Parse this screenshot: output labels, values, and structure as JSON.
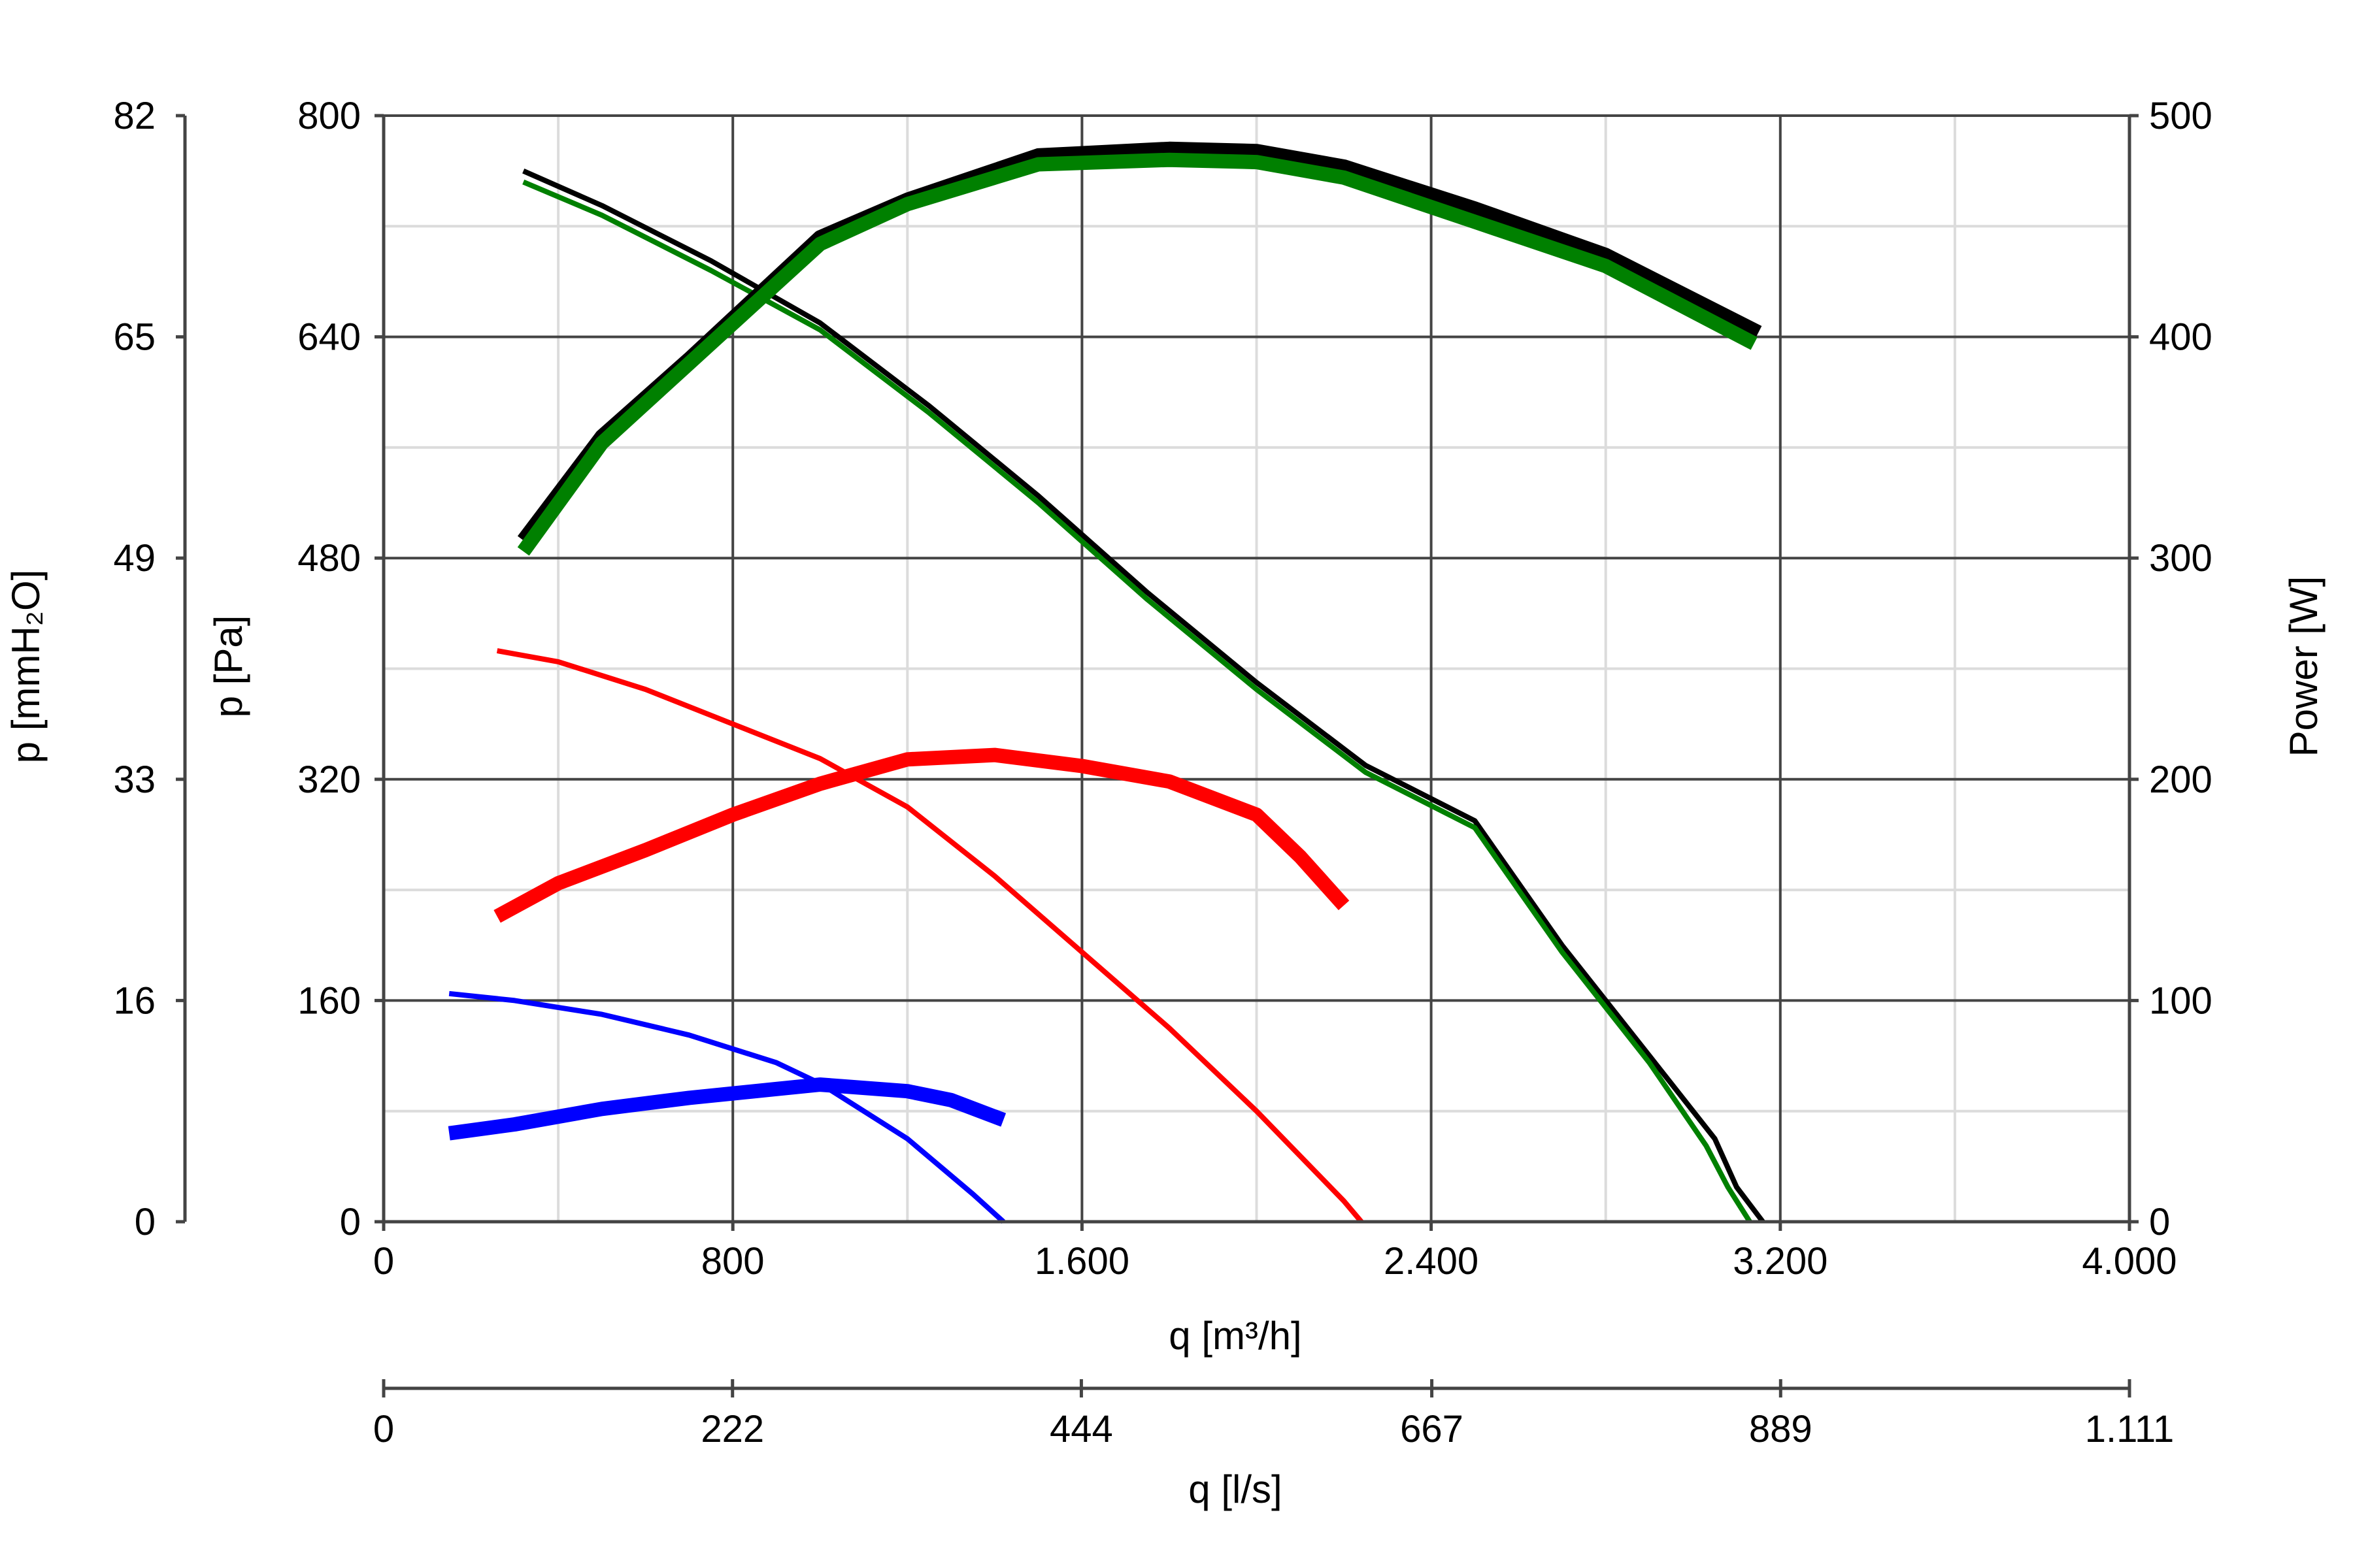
{
  "chart_data": {
    "type": "line",
    "title": "",
    "grid": true,
    "x_axis": {
      "label": "q [m³/h]",
      "range": [
        0,
        4000
      ],
      "ticks": [
        0,
        800,
        1600,
        2400,
        3200,
        4000
      ],
      "tick_labels": [
        "0",
        "800",
        "1.600",
        "2.400",
        "3.200",
        "4.000"
      ]
    },
    "x2_axis": {
      "label": "q [l/s]",
      "range": [
        0,
        1111
      ],
      "ticks": [
        0,
        222,
        444,
        667,
        889,
        1111
      ],
      "tick_labels": [
        "0",
        "222",
        "444",
        "667",
        "889",
        "1.111"
      ]
    },
    "y_axis": {
      "label": "p [Pa]",
      "range": [
        0,
        800
      ],
      "ticks": [
        0,
        160,
        320,
        480,
        640,
        800
      ],
      "tick_labels": [
        "0",
        "160",
        "320",
        "480",
        "640",
        "800"
      ]
    },
    "y_outer_axis": {
      "label": "p [mmH₂O]",
      "range": [
        0,
        82
      ],
      "ticks": [
        0,
        16,
        33,
        49,
        65,
        82
      ],
      "tick_labels": [
        "0",
        "16",
        "33",
        "49",
        "65",
        "82"
      ]
    },
    "y2_axis": {
      "label": "Power [W]",
      "range": [
        0,
        500
      ],
      "ticks": [
        0,
        100,
        200,
        300,
        400,
        500
      ],
      "tick_labels": [
        "0",
        "100",
        "200",
        "300",
        "400",
        "500"
      ]
    },
    "series": [
      {
        "kind": "pressure",
        "axis": "y",
        "color": "#000000",
        "weight": "thin",
        "x": [
          320,
          500,
          750,
          1000,
          1250,
          1500,
          1750,
          2000,
          2250,
          2500,
          2700,
          2900,
          3050,
          3100,
          3160
        ],
        "y": [
          760,
          735,
          695,
          650,
          590,
          525,
          455,
          390,
          330,
          290,
          200,
          120,
          60,
          25,
          0
        ]
      },
      {
        "kind": "pressure",
        "axis": "y",
        "color": "#008000",
        "weight": "thin",
        "x": [
          320,
          500,
          750,
          1000,
          1250,
          1500,
          1750,
          2000,
          2250,
          2500,
          2700,
          2900,
          3030,
          3080,
          3130
        ],
        "y": [
          752,
          728,
          688,
          645,
          585,
          520,
          450,
          385,
          325,
          285,
          195,
          115,
          55,
          25,
          0
        ]
      },
      {
        "kind": "pressure",
        "axis": "y",
        "color": "#ff0000",
        "weight": "thin",
        "x": [
          260,
          400,
          600,
          800,
          1000,
          1200,
          1400,
          1600,
          1800,
          2000,
          2200,
          2240
        ],
        "y": [
          413,
          405,
          385,
          360,
          335,
          300,
          250,
          195,
          140,
          80,
          15,
          0
        ]
      },
      {
        "kind": "pressure",
        "axis": "y",
        "color": "#0000ff",
        "weight": "thin",
        "x": [
          150,
          300,
          500,
          700,
          900,
          1000,
          1200,
          1350,
          1420
        ],
        "y": [
          165,
          160,
          150,
          135,
          115,
          100,
          60,
          20,
          0
        ]
      },
      {
        "kind": "power",
        "axis": "y2",
        "color": "#000000",
        "weight": "thick",
        "x": [
          320,
          500,
          700,
          1000,
          1200,
          1500,
          1800,
          2000,
          2200,
          2500,
          2800,
          3150
        ],
        "y": [
          308,
          355,
          390,
          445,
          462,
          482,
          485,
          484,
          477,
          458,
          437,
          402
        ]
      },
      {
        "kind": "power",
        "axis": "y2",
        "color": "#008000",
        "weight": "thick",
        "x": [
          320,
          500,
          700,
          1000,
          1200,
          1500,
          1800,
          2000,
          2200,
          2500,
          2800,
          3140
        ],
        "y": [
          303,
          352,
          388,
          442,
          460,
          478,
          480,
          479,
          472,
          452,
          432,
          397
        ]
      },
      {
        "kind": "power",
        "axis": "y2",
        "color": "#ff0000",
        "weight": "thick",
        "x": [
          260,
          400,
          600,
          800,
          1000,
          1200,
          1400,
          1600,
          1800,
          2000,
          2100,
          2200
        ],
        "y": [
          138,
          153,
          168,
          184,
          198,
          209,
          211,
          206,
          199,
          184,
          165,
          143
        ]
      },
      {
        "kind": "power",
        "axis": "y2",
        "color": "#0000ff",
        "weight": "thick",
        "x": [
          150,
          300,
          500,
          700,
          900,
          1000,
          1200,
          1300,
          1420
        ],
        "y": [
          40,
          44,
          51,
          56,
          60,
          62,
          59,
          55,
          46
        ]
      }
    ]
  }
}
